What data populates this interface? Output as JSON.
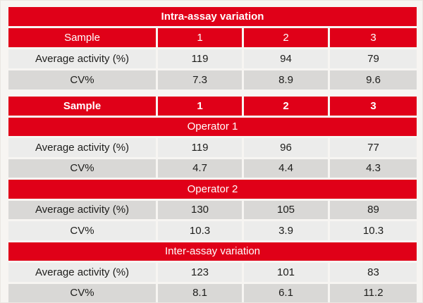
{
  "colors": {
    "accent-red": "#e00018",
    "row-light": "#ececeb",
    "row-dark": "#d9d8d6",
    "page-bg": "#f7f5f2",
    "text-dark": "#1d1d1b",
    "text-on-red": "#ffffff"
  },
  "chart_data": [
    {
      "type": "table",
      "title": "Intra-assay variation",
      "header": [
        "Sample",
        "1",
        "2",
        "3"
      ],
      "rows": [
        {
          "label": "Average activity (%)",
          "values": [
            119,
            94,
            79
          ]
        },
        {
          "label": "CV%",
          "values": [
            7.3,
            8.9,
            9.6
          ]
        }
      ]
    },
    {
      "type": "table",
      "header": [
        "Sample",
        "1",
        "2",
        "3"
      ],
      "sections": [
        {
          "title": "Operator 1",
          "rows": [
            {
              "label": "Average activity (%)",
              "values": [
                119,
                96,
                77
              ]
            },
            {
              "label": "CV%",
              "values": [
                4.7,
                4.4,
                4.3
              ]
            }
          ]
        },
        {
          "title": "Operator 2",
          "rows": [
            {
              "label": "Average activity (%)",
              "values": [
                130,
                105,
                89
              ]
            },
            {
              "label": "CV%",
              "values": [
                10.3,
                3.9,
                10.3
              ]
            }
          ]
        },
        {
          "title": "Inter-assay variation",
          "rows": [
            {
              "label": "Average activity (%)",
              "values": [
                123,
                101,
                83
              ]
            },
            {
              "label": "CV%",
              "values": [
                8.1,
                6.1,
                11.2
              ]
            }
          ]
        }
      ]
    }
  ]
}
